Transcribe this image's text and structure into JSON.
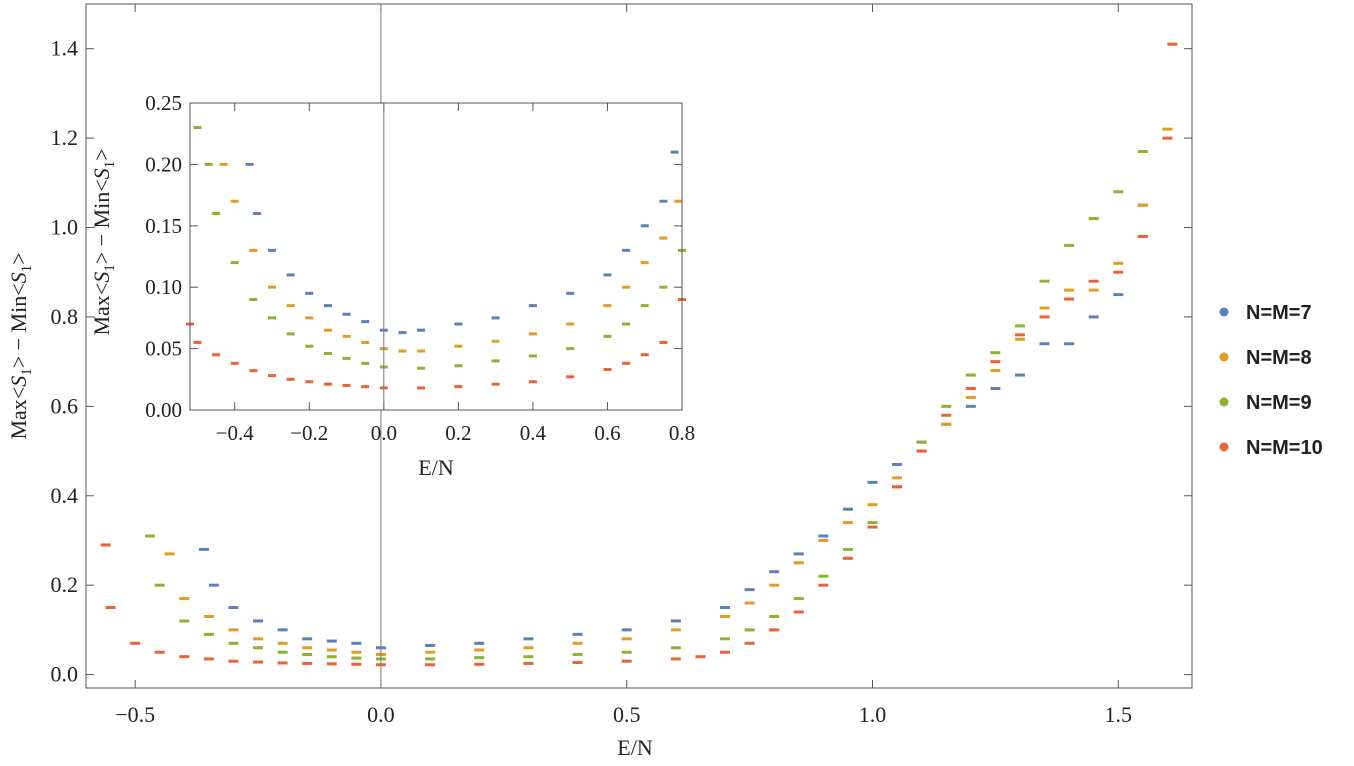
{
  "chart_data": [
    {
      "type": "scatter",
      "title": "",
      "xlabel": "E/N",
      "ylabel_parts": [
        "Max<",
        "S",
        "1",
        "> − Min<",
        "S",
        "1",
        ">"
      ],
      "xlim": [
        -0.6,
        1.65
      ],
      "ylim": [
        -0.03,
        1.5
      ],
      "xticks": [
        -0.5,
        0.0,
        0.5,
        1.0,
        1.5
      ],
      "xtick_labels": [
        "−0.5",
        "0.0",
        "0.5",
        "1.0",
        "1.5"
      ],
      "yticks": [
        0.0,
        0.2,
        0.4,
        0.6,
        0.8,
        1.0,
        1.2,
        1.4
      ],
      "ytick_labels": [
        "0.0",
        "0.2",
        "0.4",
        "0.6",
        "0.8",
        "1.0",
        "1.2",
        "1.4"
      ],
      "legend_position": "right",
      "series": [
        {
          "name": "N=M=7",
          "color": "#5e81b5",
          "x": [
            -0.36,
            -0.34,
            -0.3,
            -0.25,
            -0.2,
            -0.15,
            -0.1,
            -0.05,
            0.0,
            0.1,
            0.2,
            0.3,
            0.4,
            0.5,
            0.6,
            0.7,
            0.75,
            0.8,
            0.85,
            0.9,
            0.95,
            1.0,
            1.05,
            1.1,
            1.15,
            1.2,
            1.25,
            1.3,
            1.35,
            1.4,
            1.45,
            1.5,
            1.55
          ],
          "y": [
            0.28,
            0.2,
            0.15,
            0.12,
            0.1,
            0.08,
            0.075,
            0.07,
            0.06,
            0.065,
            0.07,
            0.08,
            0.09,
            0.1,
            0.12,
            0.15,
            0.19,
            0.23,
            0.27,
            0.31,
            0.37,
            0.43,
            0.47,
            0.52,
            0.56,
            0.6,
            0.64,
            0.67,
            0.74,
            0.74,
            0.8,
            0.85,
            1.05
          ]
        },
        {
          "name": "N=M=8",
          "color": "#e19c24",
          "x": [
            -0.43,
            -0.4,
            -0.35,
            -0.3,
            -0.25,
            -0.2,
            -0.15,
            -0.1,
            -0.05,
            0.0,
            0.1,
            0.2,
            0.3,
            0.4,
            0.5,
            0.6,
            0.7,
            0.75,
            0.8,
            0.85,
            0.9,
            0.95,
            1.0,
            1.05,
            1.1,
            1.15,
            1.2,
            1.25,
            1.3,
            1.35,
            1.4,
            1.45,
            1.5,
            1.55,
            1.6
          ],
          "y": [
            0.27,
            0.17,
            0.13,
            0.1,
            0.08,
            0.07,
            0.06,
            0.055,
            0.05,
            0.045,
            0.05,
            0.055,
            0.06,
            0.07,
            0.08,
            0.1,
            0.13,
            0.16,
            0.2,
            0.25,
            0.3,
            0.34,
            0.38,
            0.44,
            0.5,
            0.56,
            0.62,
            0.68,
            0.75,
            0.82,
            0.86,
            0.86,
            0.92,
            1.05,
            1.22
          ]
        },
        {
          "name": "N=M=9",
          "color": "#8fb032",
          "x": [
            -0.47,
            -0.45,
            -0.4,
            -0.35,
            -0.3,
            -0.25,
            -0.2,
            -0.15,
            -0.1,
            -0.05,
            0.0,
            0.1,
            0.2,
            0.3,
            0.4,
            0.5,
            0.6,
            0.7,
            0.75,
            0.8,
            0.85,
            0.9,
            0.95,
            1.0,
            1.05,
            1.1,
            1.15,
            1.2,
            1.25,
            1.3,
            1.35,
            1.4,
            1.45,
            1.5,
            1.55
          ],
          "y": [
            0.31,
            0.2,
            0.12,
            0.09,
            0.07,
            0.06,
            0.05,
            0.045,
            0.04,
            0.037,
            0.035,
            0.035,
            0.038,
            0.04,
            0.045,
            0.05,
            0.06,
            0.08,
            0.1,
            0.13,
            0.17,
            0.22,
            0.28,
            0.34,
            0.42,
            0.52,
            0.6,
            0.67,
            0.72,
            0.78,
            0.88,
            0.96,
            1.02,
            1.08,
            1.17
          ]
        },
        {
          "name": "N=M=10",
          "color": "#eb6235",
          "x": [
            -0.56,
            -0.55,
            -0.5,
            -0.45,
            -0.4,
            -0.35,
            -0.3,
            -0.25,
            -0.2,
            -0.15,
            -0.1,
            -0.05,
            0.0,
            0.1,
            0.2,
            0.3,
            0.4,
            0.5,
            0.6,
            0.65,
            0.7,
            0.75,
            0.8,
            0.85,
            0.9,
            0.95,
            1.0,
            1.05,
            1.1,
            1.15,
            1.2,
            1.25,
            1.3,
            1.35,
            1.4,
            1.45,
            1.5,
            1.55,
            1.6,
            1.61
          ],
          "y": [
            0.29,
            0.15,
            0.07,
            0.05,
            0.04,
            0.035,
            0.03,
            0.028,
            0.026,
            0.025,
            0.024,
            0.023,
            0.022,
            0.022,
            0.023,
            0.025,
            0.027,
            0.03,
            0.035,
            0.04,
            0.05,
            0.07,
            0.1,
            0.14,
            0.2,
            0.26,
            0.33,
            0.42,
            0.5,
            0.58,
            0.64,
            0.7,
            0.76,
            0.8,
            0.84,
            0.88,
            0.9,
            0.98,
            1.2,
            1.41
          ]
        }
      ]
    },
    {
      "type": "scatter",
      "title": "",
      "xlabel": "E/N",
      "ylabel_parts": [
        "Max<",
        "S",
        "1",
        "> − Min<",
        "S",
        "1",
        ">"
      ],
      "xlim": [
        -0.52,
        0.8
      ],
      "ylim": [
        0.0,
        0.25
      ],
      "xticks": [
        -0.4,
        -0.2,
        0.0,
        0.2,
        0.4,
        0.6,
        0.8
      ],
      "xtick_labels": [
        "−0.4",
        "−0.2",
        "0.0",
        "0.2",
        "0.4",
        "0.6",
        "0.8"
      ],
      "yticks": [
        0.0,
        0.05,
        0.1,
        0.15,
        0.2,
        0.25
      ],
      "ytick_labels": [
        "0.00",
        "0.05",
        "0.10",
        "0.15",
        "0.20",
        "0.25"
      ],
      "series": [
        {
          "name": "N=M=7",
          "color": "#5e81b5",
          "x": [
            -0.36,
            -0.34,
            -0.3,
            -0.25,
            -0.2,
            -0.15,
            -0.1,
            -0.05,
            0.0,
            0.05,
            0.1,
            0.2,
            0.3,
            0.4,
            0.5,
            0.6,
            0.65,
            0.7,
            0.75,
            0.78
          ],
          "y": [
            0.2,
            0.16,
            0.13,
            0.11,
            0.095,
            0.085,
            0.078,
            0.072,
            0.065,
            0.063,
            0.065,
            0.07,
            0.075,
            0.085,
            0.095,
            0.11,
            0.13,
            0.15,
            0.17,
            0.21
          ]
        },
        {
          "name": "N=M=8",
          "color": "#e19c24",
          "x": [
            -0.43,
            -0.4,
            -0.35,
            -0.3,
            -0.25,
            -0.2,
            -0.15,
            -0.1,
            -0.05,
            0.0,
            0.05,
            0.1,
            0.2,
            0.3,
            0.4,
            0.5,
            0.6,
            0.65,
            0.7,
            0.75,
            0.79
          ],
          "y": [
            0.2,
            0.17,
            0.13,
            0.1,
            0.085,
            0.075,
            0.065,
            0.06,
            0.055,
            0.05,
            0.048,
            0.048,
            0.052,
            0.056,
            0.062,
            0.07,
            0.085,
            0.1,
            0.12,
            0.14,
            0.17
          ]
        },
        {
          "name": "N=M=9",
          "color": "#8fb032",
          "x": [
            -0.5,
            -0.47,
            -0.45,
            -0.4,
            -0.35,
            -0.3,
            -0.25,
            -0.2,
            -0.15,
            -0.1,
            -0.05,
            0.0,
            0.1,
            0.2,
            0.3,
            0.4,
            0.5,
            0.6,
            0.65,
            0.7,
            0.75,
            0.8
          ],
          "y": [
            0.23,
            0.2,
            0.16,
            0.12,
            0.09,
            0.075,
            0.062,
            0.052,
            0.046,
            0.042,
            0.038,
            0.035,
            0.034,
            0.036,
            0.04,
            0.044,
            0.05,
            0.06,
            0.07,
            0.085,
            0.1,
            0.13
          ]
        },
        {
          "name": "N=M=10",
          "color": "#eb6235",
          "x": [
            -0.52,
            -0.5,
            -0.45,
            -0.4,
            -0.35,
            -0.3,
            -0.25,
            -0.2,
            -0.15,
            -0.1,
            -0.05,
            0.0,
            0.1,
            0.2,
            0.3,
            0.4,
            0.5,
            0.6,
            0.65,
            0.7,
            0.75,
            0.8
          ],
          "y": [
            0.07,
            0.055,
            0.045,
            0.038,
            0.032,
            0.028,
            0.025,
            0.023,
            0.021,
            0.02,
            0.019,
            0.018,
            0.018,
            0.019,
            0.021,
            0.023,
            0.027,
            0.033,
            0.038,
            0.045,
            0.055,
            0.09
          ]
        }
      ]
    }
  ]
}
